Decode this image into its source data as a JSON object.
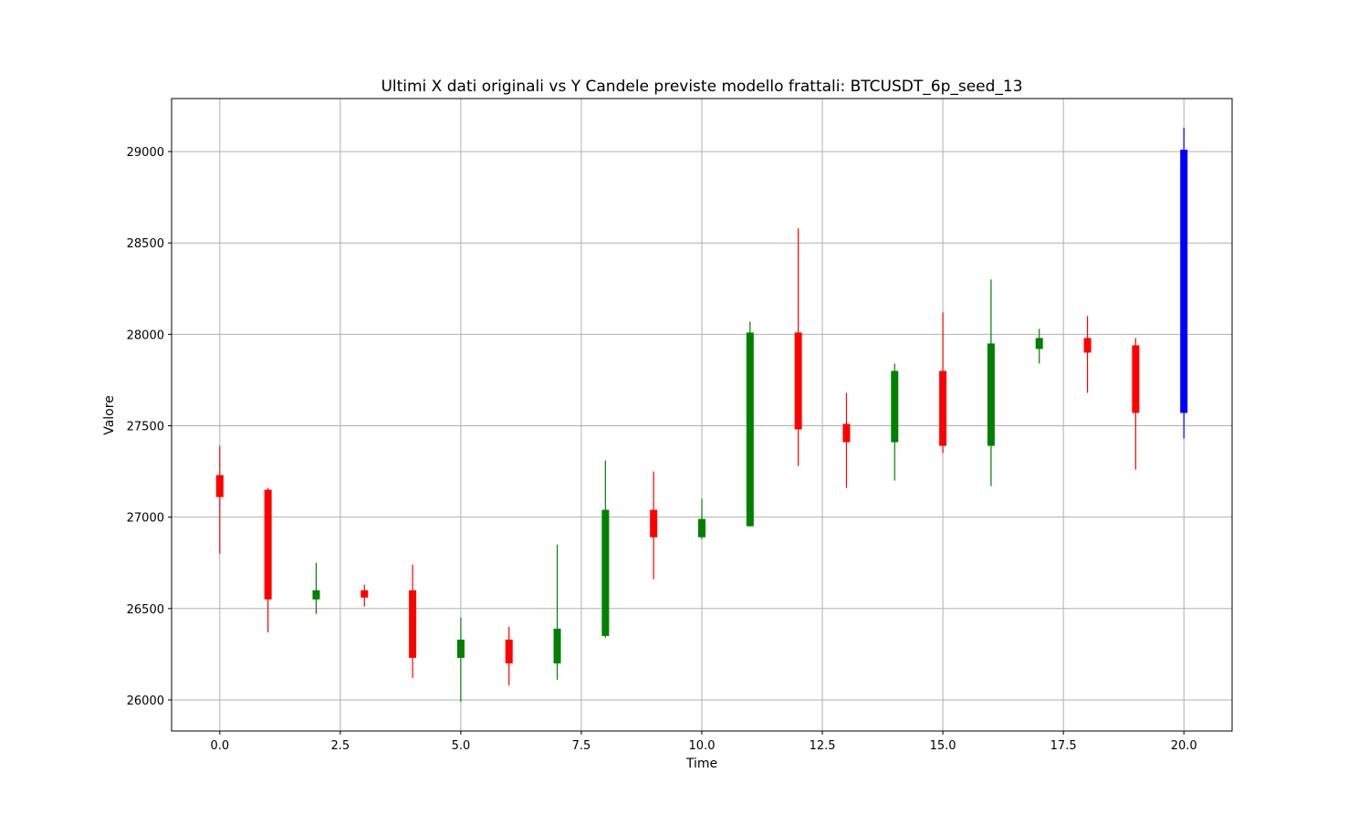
{
  "chart_data": {
    "type": "candlestick",
    "title": "Ultimi X dati originali vs Y Candele previste modello frattali: BTCUSDT_6p_seed_13",
    "xlabel": "Time",
    "ylabel": "Valore",
    "xlim": [
      -1,
      21
    ],
    "ylim": [
      25830,
      29290
    ],
    "grid": true,
    "x_ticks": [
      0.0,
      2.5,
      5.0,
      7.5,
      10.0,
      12.5,
      15.0,
      17.5,
      20.0
    ],
    "x_tick_labels": [
      "0.0",
      "2.5",
      "5.0",
      "7.5",
      "10.0",
      "12.5",
      "15.0",
      "17.5",
      "20.0"
    ],
    "y_ticks": [
      26000,
      26500,
      27000,
      27500,
      28000,
      28500,
      29000
    ],
    "y_tick_labels": [
      "26000",
      "26500",
      "27000",
      "27500",
      "28000",
      "28500",
      "29000"
    ],
    "colors": {
      "up": "#008000",
      "down": "#ff0000",
      "predicted": "#0000ff",
      "grid": "#b0b0b0"
    },
    "candles": [
      {
        "x": 0,
        "open": 27230,
        "close": 27110,
        "high": 27390,
        "low": 26800,
        "kind": "down"
      },
      {
        "x": 1,
        "open": 27150,
        "close": 26550,
        "high": 27160,
        "low": 26370,
        "kind": "down"
      },
      {
        "x": 2,
        "open": 26550,
        "close": 26600,
        "high": 26750,
        "low": 26470,
        "kind": "up"
      },
      {
        "x": 3,
        "open": 26600,
        "close": 26560,
        "high": 26630,
        "low": 26510,
        "kind": "down"
      },
      {
        "x": 4,
        "open": 26600,
        "close": 26230,
        "high": 26740,
        "low": 26120,
        "kind": "down"
      },
      {
        "x": 5,
        "open": 26230,
        "close": 26330,
        "high": 26450,
        "low": 25990,
        "kind": "up"
      },
      {
        "x": 6,
        "open": 26330,
        "close": 26200,
        "high": 26400,
        "low": 26080,
        "kind": "down"
      },
      {
        "x": 7,
        "open": 26200,
        "close": 26390,
        "high": 26850,
        "low": 26110,
        "kind": "up"
      },
      {
        "x": 8,
        "open": 26350,
        "close": 27040,
        "high": 27310,
        "low": 26340,
        "kind": "up"
      },
      {
        "x": 9,
        "open": 27040,
        "close": 26890,
        "high": 27250,
        "low": 26660,
        "kind": "down"
      },
      {
        "x": 10,
        "open": 26890,
        "close": 26990,
        "high": 27100,
        "low": 26880,
        "kind": "up"
      },
      {
        "x": 11,
        "open": 26950,
        "close": 28010,
        "high": 28070,
        "low": 26950,
        "kind": "up"
      },
      {
        "x": 12,
        "open": 28010,
        "close": 27480,
        "high": 28580,
        "low": 27280,
        "kind": "down"
      },
      {
        "x": 13,
        "open": 27510,
        "close": 27410,
        "high": 27680,
        "low": 27160,
        "kind": "down"
      },
      {
        "x": 14,
        "open": 27410,
        "close": 27800,
        "high": 27840,
        "low": 27200,
        "kind": "up"
      },
      {
        "x": 15,
        "open": 27800,
        "close": 27390,
        "high": 28120,
        "low": 27350,
        "kind": "down"
      },
      {
        "x": 16,
        "open": 27390,
        "close": 27950,
        "high": 28300,
        "low": 27170,
        "kind": "up"
      },
      {
        "x": 17,
        "open": 27920,
        "close": 27980,
        "high": 28030,
        "low": 27840,
        "kind": "up"
      },
      {
        "x": 18,
        "open": 27980,
        "close": 27900,
        "high": 28100,
        "low": 27680,
        "kind": "down"
      },
      {
        "x": 19,
        "open": 27940,
        "close": 27570,
        "high": 27980,
        "low": 27260,
        "kind": "down"
      },
      {
        "x": 20,
        "open": 27570,
        "close": 29010,
        "high": 29130,
        "low": 27430,
        "kind": "predicted"
      }
    ]
  }
}
